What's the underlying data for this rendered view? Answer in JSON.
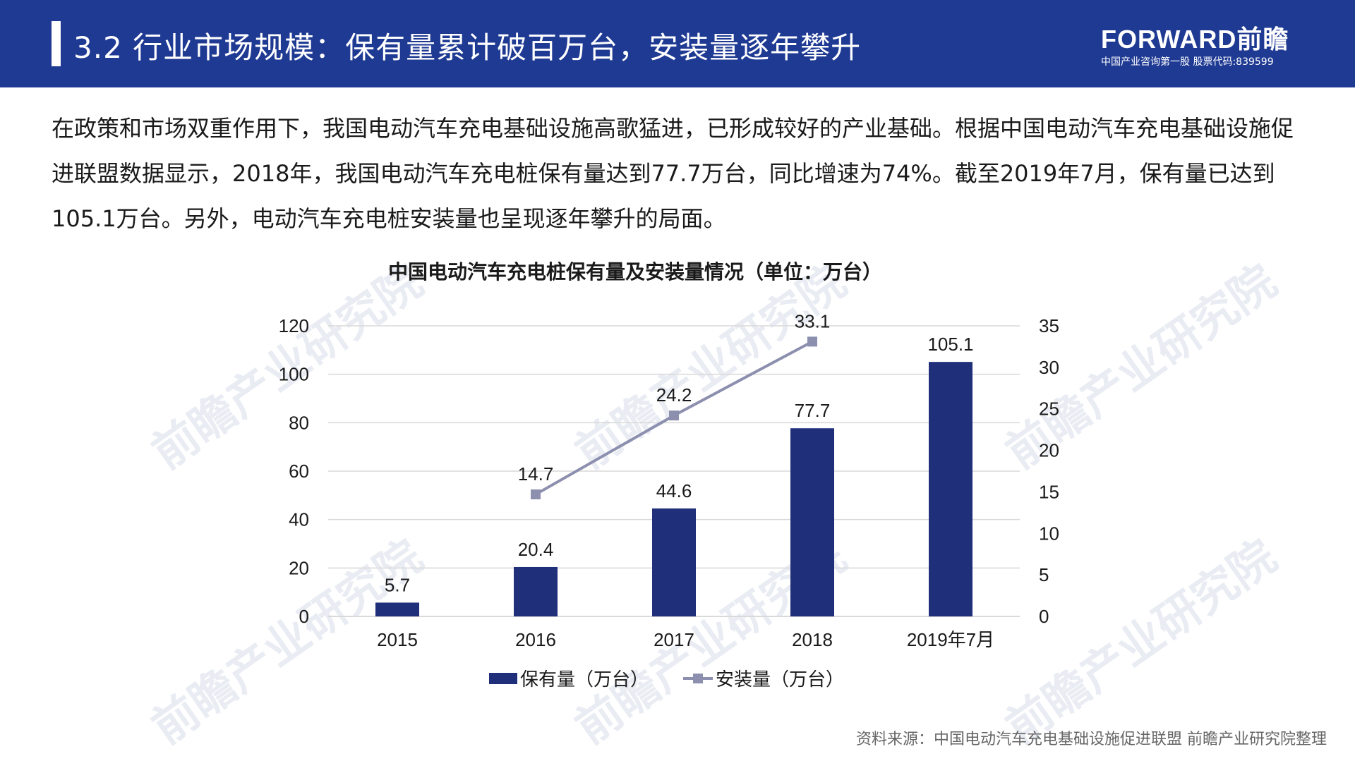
{
  "header": {
    "title": "3.2 行业市场规模：保有量累计破百万台，安装量逐年攀升",
    "logo_main": "FORWARD前瞻",
    "logo_sub": "中国产业咨询第一股  股票代码:839599"
  },
  "intro": "在政策和市场双重作用下，我国电动汽车充电基础设施高歌猛进，已形成较好的产业基础。根据中国电动汽车充电基础设施促进联盟数据显示，2018年，我国电动汽车充电桩保有量达到77.7万台，同比增速为74%。截至2019年7月，保有量已达到105.1万台。另外，电动汽车充电桩安装量也呈现逐年攀升的局面。",
  "watermark": "前瞻产业研究院",
  "source": "资料来源：中国电动汽车充电基础设施促进联盟 前瞻产业研究院整理",
  "colors": {
    "header_bg": "#1f3a93",
    "bar": "#1f2f7a",
    "line": "#8c8fae",
    "grid": "#d9d9d9"
  },
  "chart_data": {
    "type": "bar",
    "title": "中国电动汽车充电桩保有量及安装量情况（单位：万台）",
    "categories": [
      "2015",
      "2016",
      "2017",
      "2018",
      "2019年7月"
    ],
    "series": [
      {
        "name": "保有量（万台）",
        "type": "bar",
        "axis": "left",
        "values": [
          5.7,
          20.4,
          44.6,
          77.7,
          105.1
        ],
        "labels": [
          "5.7",
          "20.4",
          "44.6",
          "77.7",
          "105.1"
        ]
      },
      {
        "name": "安装量（万台）",
        "type": "line",
        "axis": "right",
        "values": [
          null,
          14.7,
          24.2,
          33.1,
          null
        ],
        "labels": [
          "",
          "14.7",
          "24.2",
          "33.1",
          ""
        ]
      }
    ],
    "y_left": {
      "ylim": [
        0,
        120
      ],
      "ticks": [
        "0",
        "20",
        "40",
        "60",
        "80",
        "100",
        "120"
      ]
    },
    "y_right": {
      "ylim": [
        0,
        35
      ],
      "ticks": [
        "0",
        "5",
        "10",
        "15",
        "20",
        "25",
        "30",
        "35"
      ]
    },
    "grid": true,
    "legend": "bottom"
  }
}
